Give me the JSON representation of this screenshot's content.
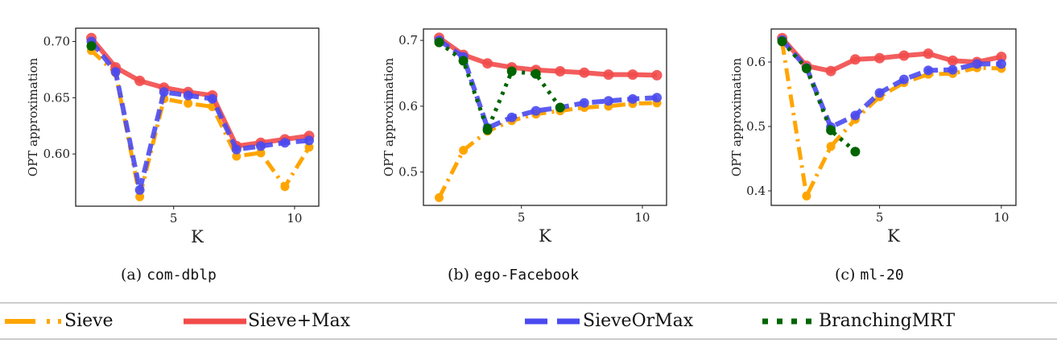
{
  "colors": {
    "Sieve": "#FFA500",
    "Sieve+Max": "#F24B4B",
    "SieveOrMax": "#4A4AF0",
    "BranchingMRT": "#006400"
  },
  "legend": {
    "items": [
      {
        "label": "Sieve",
        "style": "dash-dot"
      },
      {
        "label": "Sieve+Max",
        "style": "solid"
      },
      {
        "label": "SieveOrMax",
        "style": "dashed"
      },
      {
        "label": "BranchingMRT",
        "style": "dotted"
      }
    ]
  },
  "chart_data": [
    {
      "type": "line",
      "caption_prefix": "(a)",
      "caption_name": "com-dblp",
      "xlabel": "K",
      "ylabel": "OPT approximation",
      "xlim": [
        0.95,
        11.0
      ],
      "ylim": [
        0.5536,
        0.7118
      ],
      "xticks": [
        5,
        10
      ],
      "xtick_labels": [
        "5",
        "10"
      ],
      "yticks": [
        0.6,
        0.65,
        0.7
      ],
      "ytick_labels": [
        "0.60",
        "0.65",
        "0.70"
      ],
      "grid": false,
      "x": [
        1.6,
        2.6,
        3.6,
        4.6,
        5.6,
        6.6,
        7.6,
        8.6,
        9.6,
        10.6
      ],
      "series": [
        {
          "name": "Sieve",
          "values": [
            0.692,
            0.672,
            0.562,
            0.649,
            0.645,
            0.642,
            0.598,
            0.601,
            0.571,
            0.606
          ]
        },
        {
          "name": "Sieve+Max",
          "values": [
            0.703,
            0.677,
            0.665,
            0.659,
            0.655,
            0.652,
            0.607,
            0.61,
            0.613,
            0.616
          ]
        },
        {
          "name": "SieveOrMax",
          "values": [
            0.7,
            0.673,
            0.568,
            0.655,
            0.652,
            0.649,
            0.604,
            0.607,
            0.61,
            0.612
          ]
        },
        {
          "name": "BranchingMRT",
          "values": [
            0.696,
            null,
            null,
            null,
            null,
            null,
            null,
            null,
            null,
            null
          ]
        }
      ]
    },
    {
      "type": "line",
      "caption_prefix": "(b)",
      "caption_name": "ego-Facebook",
      "xlabel": "K",
      "ylabel": "OPT approximation",
      "xlim": [
        0.95,
        11.0
      ],
      "ylim": [
        0.4493,
        0.7173
      ],
      "xticks": [
        5,
        10
      ],
      "xtick_labels": [
        "5",
        "10"
      ],
      "yticks": [
        0.5,
        0.6,
        0.7
      ],
      "ytick_labels": [
        "0.5",
        "0.6",
        "0.7"
      ],
      "grid": false,
      "x": [
        1.6,
        2.6,
        3.6,
        4.6,
        5.6,
        6.6,
        7.6,
        8.6,
        9.6,
        10.6
      ],
      "series": [
        {
          "name": "Sieve",
          "values": [
            0.461,
            0.533,
            0.562,
            0.578,
            0.588,
            0.593,
            0.598,
            0.6,
            0.604,
            0.605
          ]
        },
        {
          "name": "Sieve+Max",
          "values": [
            0.704,
            0.678,
            0.665,
            0.659,
            0.655,
            0.653,
            0.651,
            0.648,
            0.648,
            0.647
          ]
        },
        {
          "name": "SieveOrMax",
          "values": [
            0.7,
            0.675,
            0.567,
            0.583,
            0.593,
            0.598,
            0.605,
            0.608,
            0.611,
            0.613
          ]
        },
        {
          "name": "BranchingMRT",
          "values": [
            0.697,
            0.669,
            0.564,
            0.653,
            0.649,
            0.598,
            null,
            null,
            null,
            null
          ]
        }
      ]
    },
    {
      "type": "line",
      "caption_prefix": "(c)",
      "caption_name": "ml-20",
      "xlabel": "K",
      "ylabel": "OPT approximation",
      "xlim": [
        0.55,
        10.6
      ],
      "ylim": [
        0.3775,
        0.6513
      ],
      "xticks": [
        5,
        10
      ],
      "xtick_labels": [
        "5",
        "10"
      ],
      "yticks": [
        0.4,
        0.5,
        0.6
      ],
      "ytick_labels": [
        "0.4",
        "0.5",
        "0.6"
      ],
      "grid": false,
      "x": [
        1,
        2,
        3,
        4,
        5,
        6,
        7,
        8,
        9,
        10
      ],
      "series": [
        {
          "name": "Sieve",
          "values": [
            0.631,
            0.392,
            0.469,
            0.511,
            0.546,
            0.568,
            0.581,
            0.582,
            0.591,
            0.59
          ]
        },
        {
          "name": "Sieve+Max",
          "values": [
            0.637,
            0.594,
            0.586,
            0.604,
            0.606,
            0.61,
            0.613,
            0.602,
            0.6,
            0.608
          ]
        },
        {
          "name": "SieveOrMax",
          "values": [
            0.634,
            0.591,
            0.499,
            0.517,
            0.552,
            0.573,
            0.587,
            0.588,
            0.597,
            0.597
          ]
        },
        {
          "name": "BranchingMRT",
          "values": [
            0.632,
            0.59,
            0.494,
            0.461,
            null,
            null,
            null,
            null,
            null,
            null
          ]
        }
      ]
    }
  ]
}
